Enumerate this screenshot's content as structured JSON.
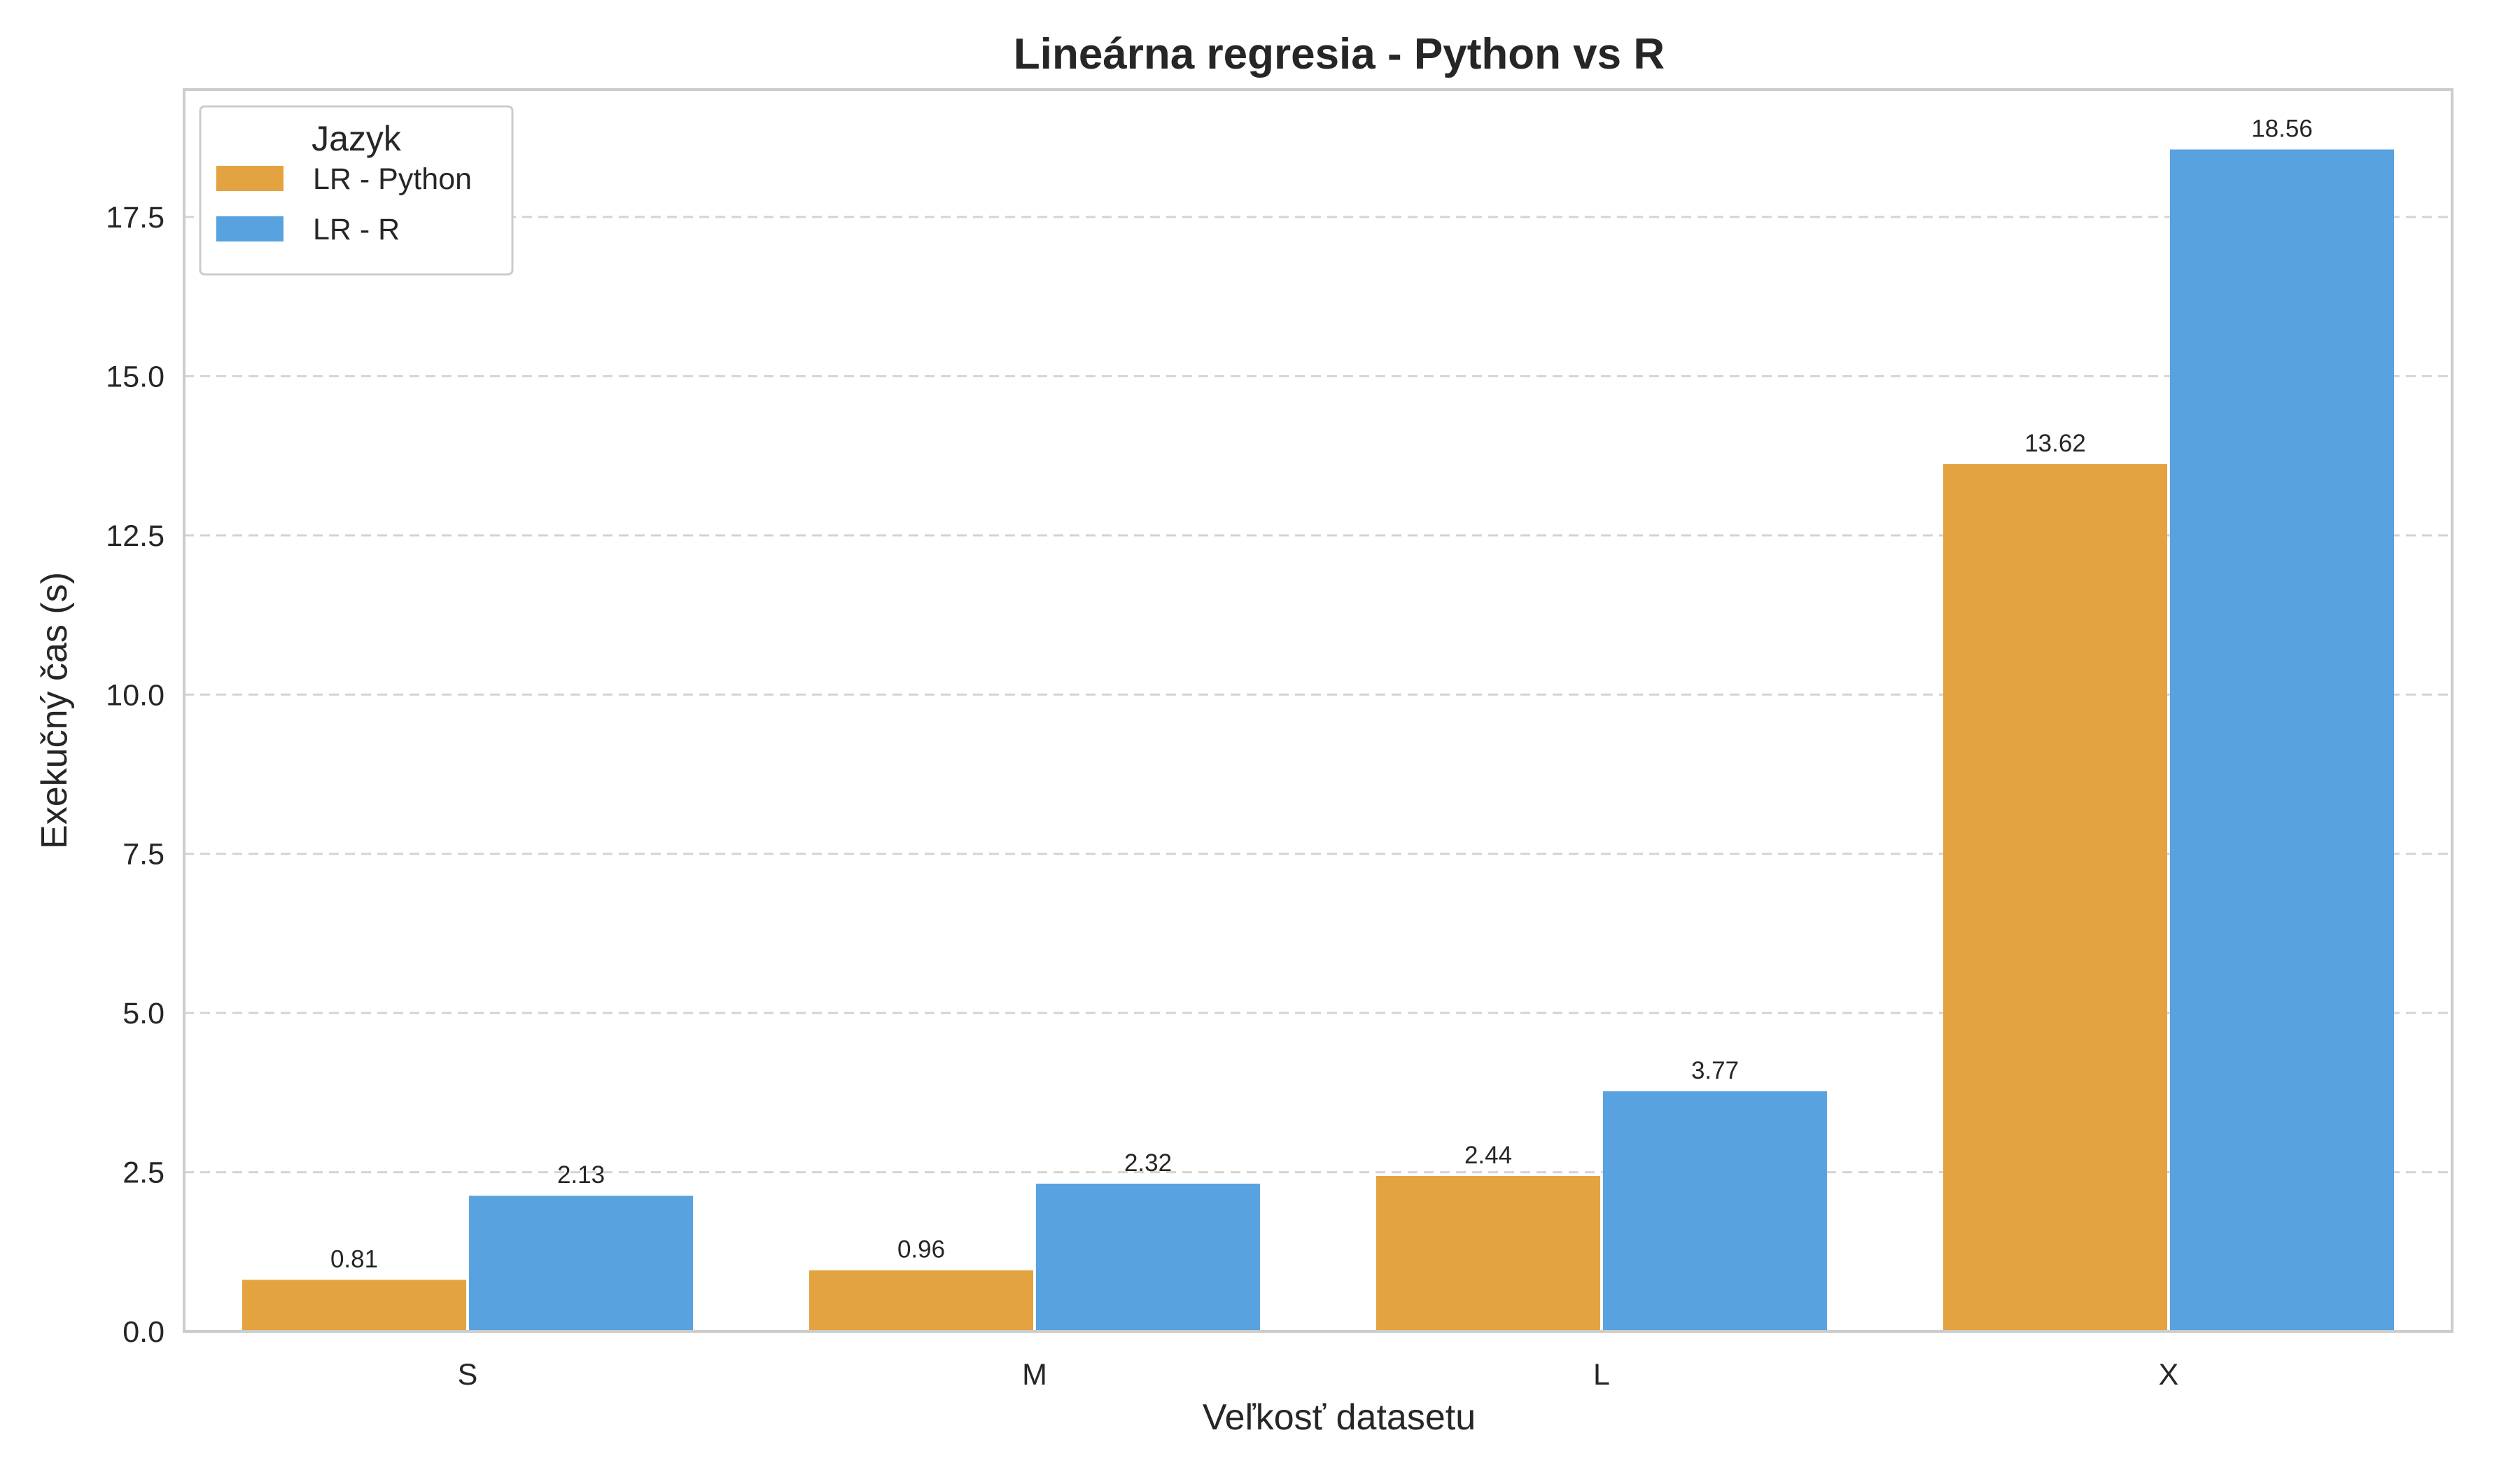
{
  "chart_data": {
    "type": "bar",
    "title": "Lineárna regresia - Python vs R",
    "xlabel": "Veľkosť datasetu",
    "ylabel": "Exekučný čas (s)",
    "categories": [
      "S",
      "M",
      "L",
      "X"
    ],
    "series": [
      {
        "name": "LR - Python",
        "color": "#e4a341",
        "values": [
          0.81,
          0.96,
          2.44,
          13.62
        ],
        "labels": [
          "0.81",
          "0.96",
          "2.44",
          "13.62"
        ]
      },
      {
        "name": "LR - R",
        "color": "#58a2df",
        "values": [
          2.13,
          2.32,
          3.77,
          18.56
        ],
        "labels": [
          "2.13",
          "2.32",
          "3.77",
          "18.56"
        ]
      }
    ],
    "ylim": [
      0,
      19.5
    ],
    "yticks": [
      "0.0",
      "2.5",
      "5.0",
      "7.5",
      "10.0",
      "12.5",
      "15.0",
      "17.5"
    ],
    "grid": "horizontal dashed",
    "legend": {
      "title": "Jazyk",
      "placement": "top-left"
    }
  }
}
